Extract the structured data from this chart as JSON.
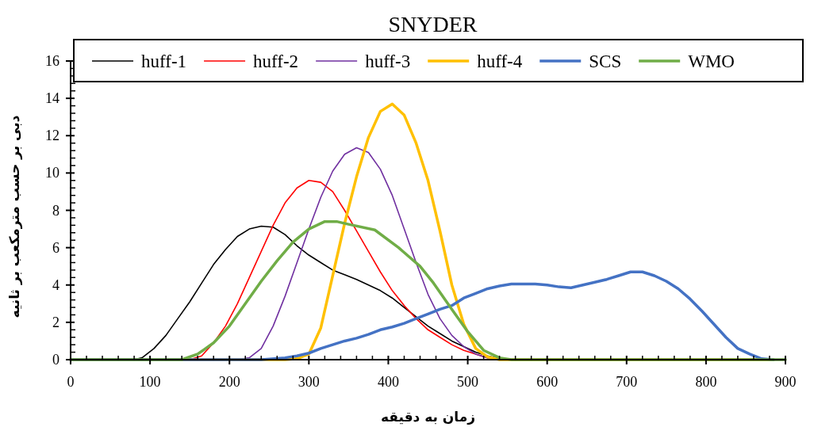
{
  "chart_data": {
    "type": "line",
    "title": "SNYDER",
    "xlabel": "زمان به دقیقه",
    "ylabel": "دبی بر حسب مترمکعب بر ثانیه",
    "xlim": [
      0,
      900
    ],
    "xticks": [
      0,
      100,
      200,
      300,
      400,
      500,
      600,
      700,
      800,
      900
    ],
    "ylim": [
      0,
      16
    ],
    "yticks": [
      0,
      2,
      4,
      6,
      8,
      10,
      12,
      14,
      16
    ],
    "grid": false,
    "legend": "top",
    "marker": "none",
    "line_style": "solid",
    "series": [
      {
        "name": "huff-1",
        "color": "#000000",
        "x": [
          0,
          80,
          90,
          105,
          120,
          135,
          150,
          165,
          180,
          195,
          210,
          225,
          240,
          255,
          270,
          285,
          300,
          315,
          330,
          345,
          360,
          375,
          390,
          405,
          420,
          435,
          450,
          465,
          480,
          495,
          510,
          525,
          540,
          555,
          885
        ],
        "values": [
          0,
          0,
          0.1,
          0.6,
          1.3,
          2.2,
          3.1,
          4.1,
          5.1,
          5.9,
          6.6,
          7.0,
          7.15,
          7.1,
          6.7,
          6.1,
          5.6,
          5.2,
          4.8,
          4.55,
          4.3,
          4.0,
          3.7,
          3.3,
          2.8,
          2.3,
          1.8,
          1.4,
          1.0,
          0.7,
          0.4,
          0.2,
          0.05,
          0,
          0
        ]
      },
      {
        "name": "huff-2",
        "color": "#ff0000",
        "x": [
          0,
          150,
          165,
          180,
          195,
          210,
          225,
          240,
          255,
          270,
          285,
          300,
          315,
          330,
          345,
          360,
          375,
          390,
          405,
          420,
          435,
          450,
          465,
          480,
          495,
          510,
          525
        ],
        "values": [
          0,
          0,
          0.2,
          0.9,
          1.8,
          3.0,
          4.4,
          5.8,
          7.2,
          8.4,
          9.2,
          9.6,
          9.5,
          9.0,
          8.0,
          6.9,
          5.8,
          4.7,
          3.7,
          2.9,
          2.2,
          1.6,
          1.2,
          0.8,
          0.5,
          0.3,
          0.1
        ]
      },
      {
        "name": "huff-3",
        "color": "#7030a0",
        "x": [
          0,
          210,
          225,
          240,
          255,
          270,
          285,
          300,
          315,
          330,
          345,
          360,
          375,
          390,
          405,
          420,
          435,
          450,
          465,
          480,
          495,
          510,
          525,
          540,
          885
        ],
        "values": [
          0,
          0,
          0.1,
          0.6,
          1.8,
          3.4,
          5.2,
          7.0,
          8.7,
          10.1,
          11.0,
          11.35,
          11.1,
          10.2,
          8.8,
          7.0,
          5.2,
          3.5,
          2.2,
          1.3,
          0.7,
          0.3,
          0.1,
          0,
          0
        ]
      },
      {
        "name": "huff-4",
        "color": "#ffc000",
        "x": [
          0,
          270,
          285,
          300,
          315,
          330,
          345,
          360,
          375,
          390,
          405,
          420,
          435,
          450,
          465,
          480,
          495,
          510,
          525,
          540,
          885
        ],
        "values": [
          0,
          0,
          0.05,
          0.3,
          1.7,
          4.5,
          7.3,
          9.8,
          11.9,
          13.3,
          13.7,
          13.1,
          11.6,
          9.6,
          6.9,
          4.0,
          1.9,
          0.6,
          0.15,
          0,
          0
        ]
      },
      {
        "name": "SCS",
        "color": "#4472c4",
        "x": [
          0,
          240,
          270,
          285,
          300,
          315,
          330,
          345,
          360,
          375,
          390,
          405,
          420,
          435,
          450,
          465,
          480,
          495,
          510,
          525,
          540,
          555,
          570,
          585,
          600,
          615,
          630,
          645,
          660,
          675,
          690,
          705,
          720,
          735,
          750,
          765,
          780,
          795,
          810,
          825,
          840,
          855,
          870,
          885
        ],
        "values": [
          0,
          0,
          0.1,
          0.2,
          0.35,
          0.6,
          0.8,
          1.0,
          1.15,
          1.35,
          1.6,
          1.75,
          1.95,
          2.2,
          2.45,
          2.7,
          2.9,
          3.3,
          3.55,
          3.8,
          3.95,
          4.05,
          4.05,
          4.05,
          4.0,
          3.9,
          3.85,
          4.0,
          4.15,
          4.3,
          4.5,
          4.7,
          4.7,
          4.5,
          4.2,
          3.8,
          3.25,
          2.6,
          1.9,
          1.2,
          0.6,
          0.3,
          0.05,
          0
        ]
      },
      {
        "name": "WMO",
        "color": "#70ad47",
        "x": [
          0,
          140,
          160,
          180,
          200,
          220,
          240,
          260,
          280,
          300,
          320,
          335,
          350,
          383,
          413,
          440,
          457,
          480,
          500,
          520,
          540,
          555,
          900
        ],
        "values": [
          0,
          0,
          0.3,
          0.9,
          1.8,
          3.0,
          4.2,
          5.3,
          6.3,
          7.0,
          7.4,
          7.4,
          7.25,
          6.95,
          6.0,
          5.0,
          4.1,
          2.7,
          1.5,
          0.5,
          0.1,
          0,
          0
        ]
      }
    ]
  }
}
